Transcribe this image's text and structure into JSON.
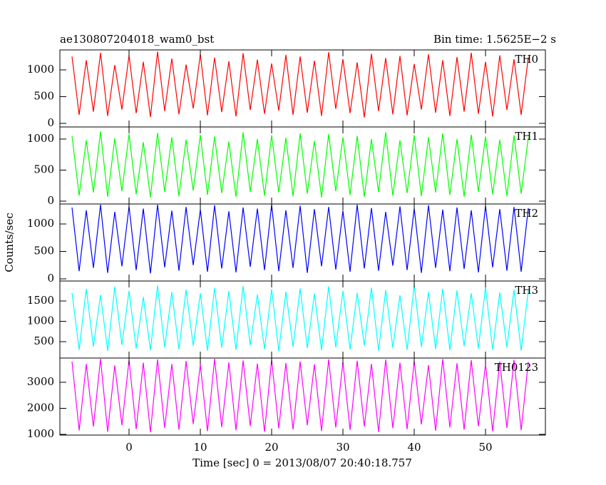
{
  "chart_data": {
    "type": "line",
    "title": "ae130807204018_wam0_bst",
    "subtitle": "Bin time: 1.5625E−2 s",
    "xlabel": "Time [sec] 0 = 2013/08/07 20:40:18.757",
    "ylabel": "Counts/sec",
    "xlim": [
      -9.7,
      58.4
    ],
    "xticks": [
      0,
      10,
      20,
      30,
      40,
      50
    ],
    "x": [
      -8,
      -7,
      -6,
      -5,
      -4,
      -3,
      -2,
      -1,
      0,
      1,
      2,
      3,
      4,
      5,
      6,
      7,
      8,
      9,
      10,
      11,
      12,
      13,
      14,
      15,
      16,
      17,
      18,
      19,
      20,
      21,
      22,
      23,
      24,
      25,
      26,
      27,
      28,
      29,
      30,
      31,
      32,
      33,
      34,
      35,
      36,
      37,
      38,
      39,
      40,
      41,
      42,
      43,
      44,
      45,
      46,
      47,
      48,
      49,
      50,
      51,
      52,
      53,
      54,
      55,
      56
    ],
    "series": [
      {
        "name": "TH0",
        "color": "#ff0000",
        "ylim": [
          -67,
          1373
        ],
        "yticks": [
          0,
          500,
          1000
        ],
        "values": [
          1250,
          160,
          1180,
          220,
          1320,
          140,
          1090,
          260,
          1270,
          190,
          1150,
          120,
          1340,
          230,
          1210,
          170,
          1100,
          280,
          1290,
          150,
          1230,
          210,
          1160,
          130,
          1310,
          250,
          1190,
          180,
          1120,
          240,
          1280,
          160,
          1250,
          200,
          1170,
          140,
          1330,
          270,
          1200,
          190,
          1140,
          110,
          1300,
          230,
          1220,
          170,
          1260,
          150,
          1110,
          260,
          1290,
          200,
          1180,
          140,
          1240,
          220,
          1320,
          180,
          1150,
          130,
          1270,
          250,
          1200,
          160,
          1230
        ]
      },
      {
        "name": "TH1",
        "color": "#00ff00",
        "ylim": [
          -46,
          1195
        ],
        "yticks": [
          0,
          500,
          1000
        ],
        "values": [
          1050,
          90,
          980,
          140,
          1120,
          70,
          1010,
          160,
          1080,
          110,
          950,
          60,
          1100,
          150,
          1030,
          80,
          990,
          170,
          1070,
          100,
          1040,
          130,
          960,
          70,
          1110,
          150,
          1000,
          90,
          1060,
          140,
          1020,
          80,
          1090,
          120,
          970,
          60,
          1080,
          160,
          1030,
          100,
          1050,
          70,
          1000,
          150,
          1110,
          90,
          980,
          130,
          1060,
          80,
          1030,
          140,
          1090,
          100,
          1000,
          70,
          1070,
          150,
          1040,
          110,
          990,
          80,
          1060,
          120,
          1020
        ]
      },
      {
        "name": "TH2",
        "color": "#0000ff",
        "ylim": [
          -39,
          1364
        ],
        "yticks": [
          0,
          500,
          1000
        ],
        "values": [
          1300,
          140,
          1250,
          200,
          1350,
          110,
          1220,
          230,
          1320,
          160,
          1280,
          100,
          1350,
          210,
          1240,
          150,
          1310,
          250,
          1260,
          130,
          1340,
          190,
          1230,
          120,
          1300,
          220,
          1280,
          160,
          1350,
          140,
          1250,
          200,
          1330,
          110,
          1270,
          230,
          1310,
          170,
          1240,
          130,
          1350,
          190,
          1290,
          150,
          1220,
          240,
          1320,
          160,
          1280,
          110,
          1340,
          200,
          1260,
          140,
          1300,
          180,
          1250,
          120,
          1330,
          210,
          1270,
          150,
          1310,
          130,
          1290
        ]
      },
      {
        "name": "TH3",
        "color": "#00ffff",
        "ylim": [
          97,
          1991
        ],
        "yticks": [
          500,
          1000,
          1500
        ],
        "values": [
          1700,
          300,
          1800,
          380,
          1650,
          270,
          1850,
          420,
          1750,
          330,
          1600,
          290,
          1880,
          360,
          1720,
          310,
          1780,
          400,
          1690,
          280,
          1820,
          350,
          1740,
          300,
          1870,
          410,
          1660,
          320,
          1790,
          270,
          1730,
          380,
          1810,
          340,
          1680,
          290,
          1860,
          360,
          1750,
          310,
          1700,
          400,
          1830,
          280,
          1770,
          350,
          1640,
          300,
          1890,
          370,
          1720,
          320,
          1800,
          290,
          1760,
          390,
          1690,
          330,
          1840,
          300,
          1710,
          360,
          1780,
          280,
          1750
        ]
      },
      {
        "name": "TH0123",
        "color": "#ff00ff",
        "ylim": [
          973,
          3931
        ],
        "yticks": [
          1000,
          2000,
          3000
        ],
        "values": [
          3800,
          1150,
          3700,
          1300,
          3900,
          1100,
          3650,
          1350,
          3850,
          1200,
          3750,
          1080,
          3880,
          1250,
          3700,
          1180,
          3820,
          1400,
          3680,
          1120,
          3900,
          1280,
          3760,
          1160,
          3840,
          1320,
          3720,
          1100,
          3860,
          1230,
          3740,
          1190,
          3800,
          1350,
          3690,
          1130,
          3880,
          1260,
          3770,
          1170,
          3830,
          1300,
          3710,
          1090,
          3870,
          1240,
          3750,
          1200,
          3810,
          1380,
          3660,
          1140,
          3890,
          1270,
          3730,
          1180,
          3850,
          1310,
          3700,
          1120,
          3790,
          1250,
          3860,
          1160,
          3780
        ]
      }
    ]
  }
}
